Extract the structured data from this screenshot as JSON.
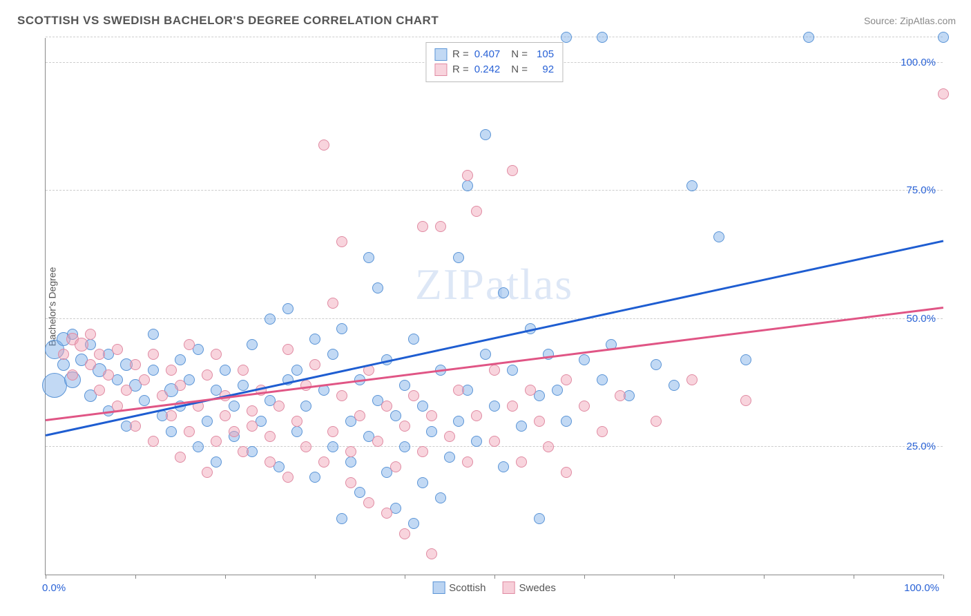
{
  "title": "SCOTTISH VS SWEDISH BACHELOR'S DEGREE CORRELATION CHART",
  "source_prefix": "Source: ",
  "source": "ZipAtlas.com",
  "watermark": "ZIPatlas",
  "chart": {
    "type": "scatter",
    "y_axis_title": "Bachelor's Degree",
    "xlim": [
      0,
      100
    ],
    "ylim": [
      0,
      105
    ],
    "x_ticks": [
      0,
      10,
      20,
      30,
      40,
      50,
      60,
      70,
      80,
      90,
      100
    ],
    "y_grid": [
      25,
      50,
      75,
      100,
      105
    ],
    "y_labels": [
      {
        "v": 25,
        "text": "25.0%"
      },
      {
        "v": 50,
        "text": "50.0%"
      },
      {
        "v": 75,
        "text": "75.0%"
      },
      {
        "v": 100,
        "text": "100.0%"
      }
    ],
    "x_label_start": "0.0%",
    "x_label_end": "100.0%",
    "background_color": "#ffffff",
    "grid_color": "#cccccc",
    "axis_color": "#888888",
    "series": [
      {
        "name": "Scottish",
        "fill": "rgba(120,170,230,0.45)",
        "stroke": "#5a94d6",
        "trend_color": "#1e5dd1",
        "trend": {
          "y_at_x0": 27,
          "y_at_x100": 65
        },
        "R": "0.407",
        "N": "105",
        "points": [
          {
            "x": 1,
            "y": 44,
            "r": 14
          },
          {
            "x": 1,
            "y": 37,
            "r": 18
          },
          {
            "x": 2,
            "y": 46,
            "r": 10
          },
          {
            "x": 2,
            "y": 41,
            "r": 9
          },
          {
            "x": 3,
            "y": 38,
            "r": 12
          },
          {
            "x": 3,
            "y": 47,
            "r": 8
          },
          {
            "x": 4,
            "y": 42,
            "r": 9
          },
          {
            "x": 5,
            "y": 35,
            "r": 9
          },
          {
            "x": 5,
            "y": 45,
            "r": 8
          },
          {
            "x": 6,
            "y": 40,
            "r": 10
          },
          {
            "x": 7,
            "y": 32,
            "r": 8
          },
          {
            "x": 7,
            "y": 43,
            "r": 8
          },
          {
            "x": 8,
            "y": 38,
            "r": 8
          },
          {
            "x": 9,
            "y": 41,
            "r": 9
          },
          {
            "x": 9,
            "y": 29,
            "r": 8
          },
          {
            "x": 10,
            "y": 37,
            "r": 9
          },
          {
            "x": 11,
            "y": 34,
            "r": 8
          },
          {
            "x": 12,
            "y": 40,
            "r": 8
          },
          {
            "x": 12,
            "y": 47,
            "r": 8
          },
          {
            "x": 13,
            "y": 31,
            "r": 8
          },
          {
            "x": 14,
            "y": 36,
            "r": 10
          },
          {
            "x": 14,
            "y": 28,
            "r": 8
          },
          {
            "x": 15,
            "y": 33,
            "r": 8
          },
          {
            "x": 15,
            "y": 42,
            "r": 8
          },
          {
            "x": 16,
            "y": 38,
            "r": 8
          },
          {
            "x": 17,
            "y": 25,
            "r": 8
          },
          {
            "x": 17,
            "y": 44,
            "r": 8
          },
          {
            "x": 18,
            "y": 30,
            "r": 8
          },
          {
            "x": 19,
            "y": 36,
            "r": 8
          },
          {
            "x": 19,
            "y": 22,
            "r": 8
          },
          {
            "x": 20,
            "y": 40,
            "r": 8
          },
          {
            "x": 21,
            "y": 27,
            "r": 8
          },
          {
            "x": 21,
            "y": 33,
            "r": 8
          },
          {
            "x": 22,
            "y": 37,
            "r": 8
          },
          {
            "x": 23,
            "y": 24,
            "r": 8
          },
          {
            "x": 23,
            "y": 45,
            "r": 8
          },
          {
            "x": 24,
            "y": 30,
            "r": 8
          },
          {
            "x": 25,
            "y": 50,
            "r": 8
          },
          {
            "x": 25,
            "y": 34,
            "r": 8
          },
          {
            "x": 26,
            "y": 21,
            "r": 8
          },
          {
            "x": 27,
            "y": 38,
            "r": 8
          },
          {
            "x": 27,
            "y": 52,
            "r": 8
          },
          {
            "x": 28,
            "y": 28,
            "r": 8
          },
          {
            "x": 28,
            "y": 40,
            "r": 8
          },
          {
            "x": 29,
            "y": 33,
            "r": 8
          },
          {
            "x": 30,
            "y": 46,
            "r": 8
          },
          {
            "x": 30,
            "y": 19,
            "r": 8
          },
          {
            "x": 31,
            "y": 36,
            "r": 8
          },
          {
            "x": 32,
            "y": 25,
            "r": 8
          },
          {
            "x": 32,
            "y": 43,
            "r": 8
          },
          {
            "x": 33,
            "y": 11,
            "r": 8
          },
          {
            "x": 33,
            "y": 48,
            "r": 8
          },
          {
            "x": 34,
            "y": 30,
            "r": 8
          },
          {
            "x": 34,
            "y": 22,
            "r": 8
          },
          {
            "x": 35,
            "y": 38,
            "r": 8
          },
          {
            "x": 35,
            "y": 16,
            "r": 8
          },
          {
            "x": 36,
            "y": 27,
            "r": 8
          },
          {
            "x": 36,
            "y": 62,
            "r": 8
          },
          {
            "x": 37,
            "y": 34,
            "r": 8
          },
          {
            "x": 37,
            "y": 56,
            "r": 8
          },
          {
            "x": 38,
            "y": 20,
            "r": 8
          },
          {
            "x": 38,
            "y": 42,
            "r": 8
          },
          {
            "x": 39,
            "y": 31,
            "r": 8
          },
          {
            "x": 39,
            "y": 13,
            "r": 8
          },
          {
            "x": 40,
            "y": 37,
            "r": 8
          },
          {
            "x": 40,
            "y": 25,
            "r": 8
          },
          {
            "x": 41,
            "y": 10,
            "r": 8
          },
          {
            "x": 41,
            "y": 46,
            "r": 8
          },
          {
            "x": 42,
            "y": 18,
            "r": 8
          },
          {
            "x": 42,
            "y": 33,
            "r": 8
          },
          {
            "x": 43,
            "y": 28,
            "r": 8
          },
          {
            "x": 44,
            "y": 15,
            "r": 8
          },
          {
            "x": 44,
            "y": 40,
            "r": 8
          },
          {
            "x": 45,
            "y": 23,
            "r": 8
          },
          {
            "x": 46,
            "y": 62,
            "r": 8
          },
          {
            "x": 46,
            "y": 30,
            "r": 8
          },
          {
            "x": 47,
            "y": 76,
            "r": 8
          },
          {
            "x": 47,
            "y": 36,
            "r": 8
          },
          {
            "x": 48,
            "y": 26,
            "r": 8
          },
          {
            "x": 49,
            "y": 43,
            "r": 8
          },
          {
            "x": 49,
            "y": 86,
            "r": 8
          },
          {
            "x": 50,
            "y": 33,
            "r": 8
          },
          {
            "x": 51,
            "y": 55,
            "r": 8
          },
          {
            "x": 51,
            "y": 21,
            "r": 8
          },
          {
            "x": 52,
            "y": 40,
            "r": 8
          },
          {
            "x": 53,
            "y": 29,
            "r": 8
          },
          {
            "x": 54,
            "y": 48,
            "r": 8
          },
          {
            "x": 55,
            "y": 35,
            "r": 8
          },
          {
            "x": 55,
            "y": 11,
            "r": 8
          },
          {
            "x": 56,
            "y": 43,
            "r": 8
          },
          {
            "x": 57,
            "y": 36,
            "r": 8
          },
          {
            "x": 58,
            "y": 105,
            "r": 8
          },
          {
            "x": 58,
            "y": 30,
            "r": 8
          },
          {
            "x": 60,
            "y": 42,
            "r": 8
          },
          {
            "x": 62,
            "y": 38,
            "r": 8
          },
          {
            "x": 62,
            "y": 105,
            "r": 8
          },
          {
            "x": 63,
            "y": 45,
            "r": 8
          },
          {
            "x": 65,
            "y": 35,
            "r": 8
          },
          {
            "x": 68,
            "y": 41,
            "r": 8
          },
          {
            "x": 70,
            "y": 37,
            "r": 8
          },
          {
            "x": 72,
            "y": 76,
            "r": 8
          },
          {
            "x": 75,
            "y": 66,
            "r": 8
          },
          {
            "x": 78,
            "y": 42,
            "r": 8
          },
          {
            "x": 85,
            "y": 105,
            "r": 8
          },
          {
            "x": 100,
            "y": 105,
            "r": 8
          }
        ]
      },
      {
        "name": "Swedes",
        "fill": "rgba(240,160,180,0.45)",
        "stroke": "#e08aa2",
        "trend_color": "#e05585",
        "trend": {
          "y_at_x0": 30,
          "y_at_x100": 52
        },
        "R": "0.242",
        "N": "92",
        "points": [
          {
            "x": 2,
            "y": 43,
            "r": 8
          },
          {
            "x": 3,
            "y": 46,
            "r": 9
          },
          {
            "x": 3,
            "y": 39,
            "r": 8
          },
          {
            "x": 4,
            "y": 45,
            "r": 10
          },
          {
            "x": 5,
            "y": 41,
            "r": 8
          },
          {
            "x": 5,
            "y": 47,
            "r": 8
          },
          {
            "x": 6,
            "y": 36,
            "r": 8
          },
          {
            "x": 6,
            "y": 43,
            "r": 8
          },
          {
            "x": 7,
            "y": 39,
            "r": 8
          },
          {
            "x": 8,
            "y": 33,
            "r": 8
          },
          {
            "x": 8,
            "y": 44,
            "r": 8
          },
          {
            "x": 9,
            "y": 36,
            "r": 8
          },
          {
            "x": 10,
            "y": 29,
            "r": 8
          },
          {
            "x": 10,
            "y": 41,
            "r": 8
          },
          {
            "x": 11,
            "y": 38,
            "r": 8
          },
          {
            "x": 12,
            "y": 43,
            "r": 8
          },
          {
            "x": 12,
            "y": 26,
            "r": 8
          },
          {
            "x": 13,
            "y": 35,
            "r": 8
          },
          {
            "x": 14,
            "y": 40,
            "r": 8
          },
          {
            "x": 14,
            "y": 31,
            "r": 8
          },
          {
            "x": 15,
            "y": 23,
            "r": 8
          },
          {
            "x": 15,
            "y": 37,
            "r": 8
          },
          {
            "x": 16,
            "y": 45,
            "r": 8
          },
          {
            "x": 16,
            "y": 28,
            "r": 8
          },
          {
            "x": 17,
            "y": 33,
            "r": 8
          },
          {
            "x": 18,
            "y": 39,
            "r": 8
          },
          {
            "x": 18,
            "y": 20,
            "r": 8
          },
          {
            "x": 19,
            "y": 26,
            "r": 8
          },
          {
            "x": 19,
            "y": 43,
            "r": 8
          },
          {
            "x": 20,
            "y": 31,
            "r": 8
          },
          {
            "x": 20,
            "y": 35,
            "r": 8
          },
          {
            "x": 21,
            "y": 28,
            "r": 8
          },
          {
            "x": 22,
            "y": 24,
            "r": 8
          },
          {
            "x": 22,
            "y": 40,
            "r": 8
          },
          {
            "x": 23,
            "y": 32,
            "r": 8
          },
          {
            "x": 23,
            "y": 29,
            "r": 8
          },
          {
            "x": 24,
            "y": 36,
            "r": 8
          },
          {
            "x": 25,
            "y": 22,
            "r": 8
          },
          {
            "x": 25,
            "y": 27,
            "r": 8
          },
          {
            "x": 26,
            "y": 33,
            "r": 8
          },
          {
            "x": 27,
            "y": 44,
            "r": 8
          },
          {
            "x": 27,
            "y": 19,
            "r": 8
          },
          {
            "x": 28,
            "y": 30,
            "r": 8
          },
          {
            "x": 29,
            "y": 25,
            "r": 8
          },
          {
            "x": 29,
            "y": 37,
            "r": 8
          },
          {
            "x": 30,
            "y": 41,
            "r": 8
          },
          {
            "x": 31,
            "y": 22,
            "r": 8
          },
          {
            "x": 31,
            "y": 84,
            "r": 8
          },
          {
            "x": 32,
            "y": 28,
            "r": 8
          },
          {
            "x": 32,
            "y": 53,
            "r": 8
          },
          {
            "x": 33,
            "y": 35,
            "r": 8
          },
          {
            "x": 33,
            "y": 65,
            "r": 8
          },
          {
            "x": 34,
            "y": 18,
            "r": 8
          },
          {
            "x": 34,
            "y": 24,
            "r": 8
          },
          {
            "x": 35,
            "y": 31,
            "r": 8
          },
          {
            "x": 36,
            "y": 14,
            "r": 8
          },
          {
            "x": 36,
            "y": 40,
            "r": 8
          },
          {
            "x": 37,
            "y": 26,
            "r": 8
          },
          {
            "x": 38,
            "y": 12,
            "r": 8
          },
          {
            "x": 38,
            "y": 33,
            "r": 8
          },
          {
            "x": 39,
            "y": 21,
            "r": 8
          },
          {
            "x": 40,
            "y": 29,
            "r": 8
          },
          {
            "x": 40,
            "y": 8,
            "r": 8
          },
          {
            "x": 41,
            "y": 35,
            "r": 8
          },
          {
            "x": 42,
            "y": 24,
            "r": 8
          },
          {
            "x": 42,
            "y": 68,
            "r": 8
          },
          {
            "x": 43,
            "y": 4,
            "r": 8
          },
          {
            "x": 43,
            "y": 31,
            "r": 8
          },
          {
            "x": 44,
            "y": 68,
            "r": 8
          },
          {
            "x": 45,
            "y": 27,
            "r": 8
          },
          {
            "x": 46,
            "y": 36,
            "r": 8
          },
          {
            "x": 47,
            "y": 78,
            "r": 8
          },
          {
            "x": 47,
            "y": 22,
            "r": 8
          },
          {
            "x": 48,
            "y": 31,
            "r": 8
          },
          {
            "x": 48,
            "y": 71,
            "r": 8
          },
          {
            "x": 50,
            "y": 26,
            "r": 8
          },
          {
            "x": 50,
            "y": 40,
            "r": 8
          },
          {
            "x": 52,
            "y": 79,
            "r": 8
          },
          {
            "x": 52,
            "y": 33,
            "r": 8
          },
          {
            "x": 53,
            "y": 22,
            "r": 8
          },
          {
            "x": 54,
            "y": 36,
            "r": 8
          },
          {
            "x": 55,
            "y": 30,
            "r": 8
          },
          {
            "x": 56,
            "y": 25,
            "r": 8
          },
          {
            "x": 58,
            "y": 38,
            "r": 8
          },
          {
            "x": 58,
            "y": 20,
            "r": 8
          },
          {
            "x": 60,
            "y": 33,
            "r": 8
          },
          {
            "x": 62,
            "y": 28,
            "r": 8
          },
          {
            "x": 64,
            "y": 35,
            "r": 8
          },
          {
            "x": 68,
            "y": 30,
            "r": 8
          },
          {
            "x": 72,
            "y": 38,
            "r": 8
          },
          {
            "x": 78,
            "y": 34,
            "r": 8
          },
          {
            "x": 100,
            "y": 94,
            "r": 8
          }
        ]
      }
    ],
    "legend_bottom": [
      {
        "label": "Scottish",
        "fill": "rgba(120,170,230,0.5)",
        "stroke": "#5a94d6"
      },
      {
        "label": "Swedes",
        "fill": "rgba(240,160,180,0.5)",
        "stroke": "#e08aa2"
      }
    ]
  }
}
